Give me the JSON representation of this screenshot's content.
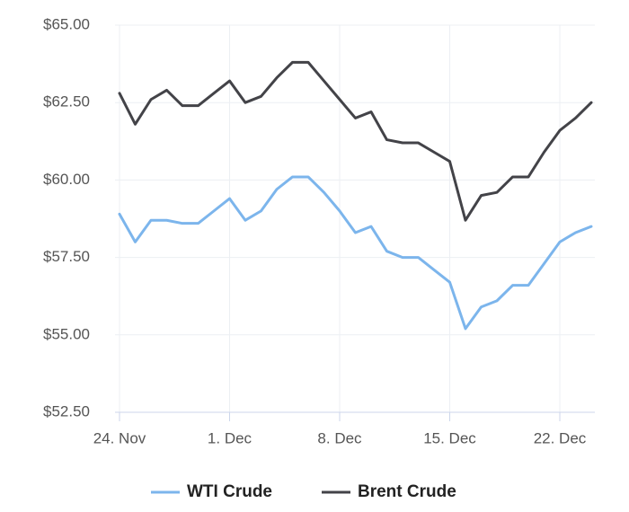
{
  "chart_data": {
    "type": "line",
    "categories": [
      "24. Nov",
      null,
      null,
      null,
      null,
      null,
      null,
      "1. Dec",
      null,
      null,
      null,
      null,
      null,
      null,
      "8. Dec",
      null,
      null,
      null,
      null,
      null,
      null,
      "15. Dec",
      null,
      null,
      null,
      null,
      null,
      null,
      "22. Dec",
      null,
      null
    ],
    "series": [
      {
        "name": "WTI Crude",
        "color": "#7cb5ec",
        "values": [
          58.9,
          58.0,
          58.7,
          58.7,
          58.6,
          58.6,
          59.0,
          59.4,
          58.7,
          59.0,
          59.7,
          60.1,
          60.1,
          59.6,
          59.0,
          58.3,
          58.5,
          57.7,
          57.5,
          57.5,
          57.1,
          56.7,
          55.2,
          55.9,
          56.1,
          56.6,
          56.6,
          57.3,
          58.0,
          58.3,
          58.5
        ]
      },
      {
        "name": "Brent Crude",
        "color": "#434348",
        "values": [
          62.8,
          61.8,
          62.6,
          62.9,
          62.4,
          62.4,
          62.8,
          63.2,
          62.5,
          62.7,
          63.3,
          63.8,
          63.8,
          63.2,
          62.6,
          62.0,
          62.2,
          61.3,
          61.2,
          61.2,
          60.9,
          60.6,
          58.7,
          59.5,
          59.6,
          60.1,
          60.1,
          60.9,
          61.6,
          62.0,
          62.5
        ]
      }
    ],
    "ylim": [
      52.5,
      65
    ],
    "yticks": [
      {
        "value": 52.5,
        "label": "$52.50"
      },
      {
        "value": 55,
        "label": "$55.00"
      },
      {
        "value": 57.5,
        "label": "$57.50"
      },
      {
        "value": 60,
        "label": "$60.00"
      },
      {
        "value": 62.5,
        "label": "$62.50"
      },
      {
        "value": 65,
        "label": "$65.00"
      }
    ],
    "grid": true,
    "legend": "bottom"
  }
}
